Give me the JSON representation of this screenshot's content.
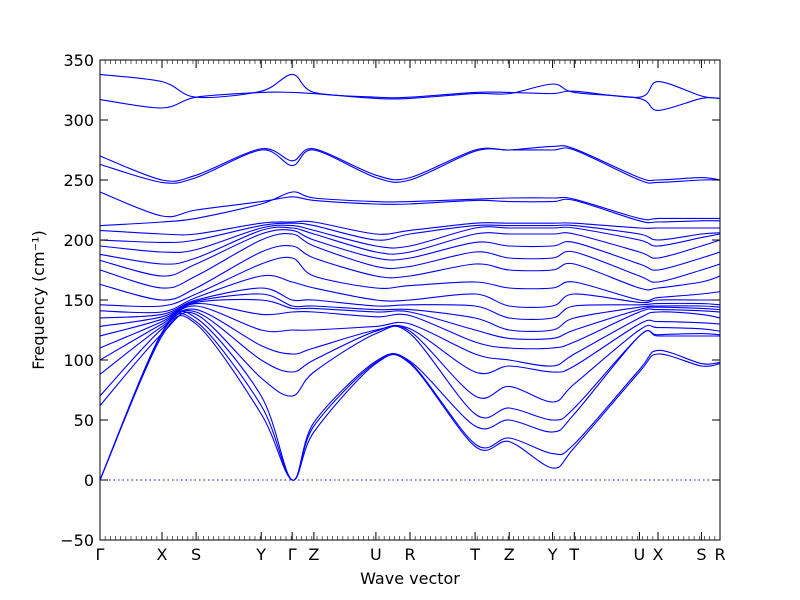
{
  "chart_data": {
    "type": "line",
    "xlabel": "Wave vector",
    "ylabel": "Frequency (cm⁻¹)",
    "ylim": [
      -50,
      350
    ],
    "yticks": [
      -50,
      0,
      50,
      100,
      150,
      200,
      250,
      300,
      350
    ],
    "zero_line": true,
    "line_color": "#0000ff",
    "kpath_ticks": [
      {
        "label": "Γ",
        "pos": 0.0
      },
      {
        "label": "X",
        "pos": 1.0
      },
      {
        "label": "S",
        "pos": 1.55
      },
      {
        "label": "Y",
        "pos": 2.6
      },
      {
        "label": "Γ",
        "pos": 3.1
      },
      {
        "label": "Z",
        "pos": 3.45
      },
      {
        "label": "U",
        "pos": 4.45
      },
      {
        "label": "R",
        "pos": 5.0
      },
      {
        "label": "T",
        "pos": 6.05
      },
      {
        "label": "Z",
        "pos": 6.6
      },
      {
        "label": "Y",
        "pos": 7.3
      },
      {
        "label": "T",
        "pos": 7.65
      },
      {
        "label": "U",
        "pos": 8.7
      },
      {
        "label": "X",
        "pos": 9.0
      },
      {
        "label": "S",
        "pos": 9.7
      },
      {
        "label": "R",
        "pos": 10.0
      }
    ],
    "series": [
      {
        "values": [
          0,
          120,
          130,
          55,
          0,
          40,
          97,
          97,
          28,
          32,
          10,
          27,
          90,
          105,
          95,
          97
        ]
      },
      {
        "values": [
          0,
          122,
          132,
          62,
          0,
          45,
          98,
          98,
          30,
          35,
          22,
          30,
          92,
          108,
          97,
          98
        ]
      },
      {
        "values": [
          0,
          123,
          135,
          70,
          0,
          48,
          99,
          99,
          45,
          50,
          40,
          55,
          120,
          120,
          120,
          120
        ]
      },
      {
        "values": [
          62,
          122,
          138,
          85,
          70,
          90,
          122,
          122,
          55,
          60,
          50,
          60,
          120,
          121,
          122,
          121
        ]
      },
      {
        "values": [
          70,
          126,
          140,
          100,
          90,
          100,
          124,
          124,
          70,
          78,
          65,
          80,
          125,
          127,
          126,
          124
        ]
      },
      {
        "values": [
          88,
          128,
          142,
          112,
          105,
          110,
          125,
          126,
          90,
          95,
          90,
          95,
          130,
          132,
          131,
          130
        ]
      },
      {
        "values": [
          100,
          130,
          145,
          125,
          125,
          125,
          128,
          130,
          105,
          100,
          95,
          105,
          135,
          140,
          138,
          135
        ]
      },
      {
        "values": [
          110,
          132,
          147,
          138,
          140,
          140,
          136,
          137,
          115,
          110,
          110,
          115,
          140,
          142,
          141,
          140
        ]
      },
      {
        "values": [
          120,
          134,
          148,
          150,
          143,
          143,
          140,
          140,
          125,
          118,
          118,
          125,
          142,
          144,
          143,
          142
        ]
      },
      {
        "values": [
          128,
          136,
          149,
          155,
          145,
          145,
          142,
          142,
          135,
          125,
          125,
          135,
          144,
          145,
          145,
          144
        ]
      },
      {
        "values": [
          135,
          138,
          150,
          160,
          150,
          150,
          145,
          146,
          145,
          135,
          135,
          145,
          146,
          147,
          147,
          146
        ]
      },
      {
        "values": [
          141,
          140,
          152,
          170,
          165,
          160,
          150,
          150,
          155,
          145,
          145,
          155,
          148,
          150,
          150,
          150
        ]
      },
      {
        "values": [
          146,
          145,
          155,
          180,
          185,
          170,
          160,
          162,
          165,
          160,
          160,
          165,
          150,
          152,
          155,
          157
        ]
      },
      {
        "values": [
          163,
          150,
          160,
          190,
          195,
          185,
          170,
          170,
          180,
          175,
          175,
          180,
          160,
          160,
          165,
          170
        ]
      },
      {
        "values": [
          175,
          160,
          170,
          200,
          205,
          195,
          178,
          178,
          190,
          185,
          185,
          190,
          170,
          165,
          175,
          180
        ]
      },
      {
        "values": [
          183,
          170,
          180,
          205,
          208,
          200,
          185,
          185,
          198,
          195,
          195,
          198,
          180,
          175,
          185,
          190
        ]
      },
      {
        "values": [
          188,
          180,
          185,
          208,
          210,
          205,
          190,
          190,
          205,
          205,
          205,
          205,
          190,
          185,
          195,
          200
        ]
      },
      {
        "values": [
          195,
          190,
          192,
          210,
          212,
          208,
          195,
          195,
          210,
          210,
          210,
          210,
          200,
          195,
          202,
          205
        ]
      },
      {
        "values": [
          200,
          198,
          200,
          212,
          214,
          212,
          200,
          205,
          212,
          212,
          212,
          212,
          205,
          200,
          205,
          206
        ]
      },
      {
        "values": [
          208,
          205,
          205,
          214,
          215,
          215,
          205,
          208,
          214,
          214,
          214,
          214,
          210,
          210,
          210,
          210
        ]
      },
      {
        "values": [
          212,
          215,
          218,
          230,
          240,
          235,
          232,
          232,
          234,
          235,
          235,
          234,
          218,
          218,
          218,
          218
        ]
      },
      {
        "values": [
          240,
          220,
          225,
          232,
          236,
          233,
          230,
          230,
          233,
          232,
          232,
          233,
          216,
          215,
          216,
          216
        ]
      },
      {
        "values": [
          263,
          248,
          252,
          275,
          262,
          275,
          252,
          250,
          274,
          275,
          275,
          275,
          250,
          248,
          250,
          250
        ]
      },
      {
        "values": [
          270,
          250,
          254,
          276,
          266,
          276,
          254,
          252,
          275,
          275,
          278,
          276,
          252,
          250,
          252,
          250
        ]
      },
      {
        "values": [
          317,
          310,
          319,
          323,
          323,
          322,
          318,
          318,
          322,
          322,
          330,
          323,
          318,
          308,
          318,
          318
        ]
      },
      {
        "values": [
          338,
          332,
          319,
          324,
          338,
          323,
          319,
          319,
          323,
          323,
          322,
          324,
          319,
          332,
          320,
          318
        ]
      }
    ]
  }
}
